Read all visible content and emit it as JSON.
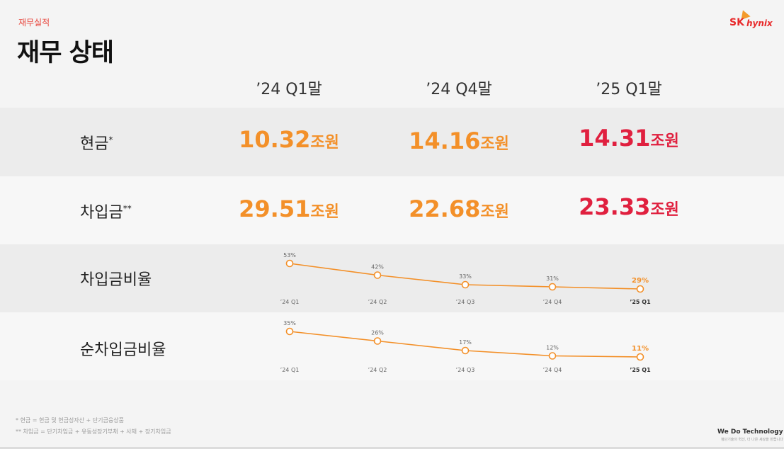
{
  "header": {
    "section_label": "재무실적",
    "title": "재무 상태",
    "logo_sk": "SK",
    "logo_hynix": "hynix"
  },
  "columns": [
    "’24 Q1말",
    "’24 Q4말",
    "’25 Q1말"
  ],
  "rows": [
    {
      "label": "현금",
      "mark": "*",
      "values": [
        {
          "num": "10.32",
          "unit": "조원"
        },
        {
          "num": "14.16",
          "unit": "조원"
        },
        {
          "num": "14.31",
          "unit": "조원"
        }
      ]
    },
    {
      "label": "차입금",
      "mark": "**",
      "values": [
        {
          "num": "29.51",
          "unit": "조원"
        },
        {
          "num": "22.68",
          "unit": "조원"
        },
        {
          "num": "23.33",
          "unit": "조원"
        }
      ]
    }
  ],
  "colors": {
    "accent_orange": "#f39029",
    "accent_red": "#e0203f",
    "brand_red": "#e8292a"
  },
  "chart_data": [
    {
      "type": "line",
      "title": "차입금비율",
      "categories": [
        "’24 Q1",
        "’24 Q2",
        "’24 Q3",
        "’24 Q4",
        "’25 Q1"
      ],
      "values": [
        53,
        42,
        33,
        31,
        29
      ],
      "labels": [
        "53%",
        "42%",
        "33%",
        "31%",
        "29%"
      ],
      "ylim": [
        29,
        53
      ]
    },
    {
      "type": "line",
      "title": "순차입금비율",
      "categories": [
        "’24 Q1",
        "’24 Q2",
        "’24 Q3",
        "’24 Q4",
        "’25 Q1"
      ],
      "values": [
        35,
        26,
        17,
        12,
        11
      ],
      "labels": [
        "35%",
        "26%",
        "17%",
        "12%",
        "11%"
      ],
      "ylim": [
        11,
        35
      ]
    }
  ],
  "footnotes": [
    "* 현금 = 현금 및 현금성자산 + 단기금융상품",
    "** 차입금 = 단기차입금 + 유동성장기부채 + 사채 + 장기차입금"
  ],
  "tagline": "We Do Technology",
  "tagline_sub": "첨단기술의 혁신, 더 나은 세상을 만듭니다"
}
